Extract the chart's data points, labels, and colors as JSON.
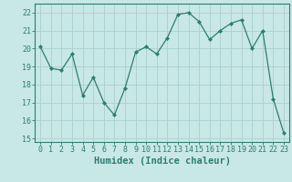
{
  "xlabel": "Humidex (Indice chaleur)",
  "ylabel": "",
  "x": [
    0,
    1,
    2,
    3,
    4,
    5,
    6,
    7,
    8,
    9,
    10,
    11,
    12,
    13,
    14,
    15,
    16,
    17,
    18,
    19,
    20,
    21,
    22,
    23
  ],
  "y": [
    20.1,
    18.9,
    18.8,
    19.7,
    17.4,
    18.4,
    17.0,
    16.3,
    17.8,
    19.8,
    20.1,
    19.7,
    20.6,
    21.9,
    22.0,
    21.5,
    20.5,
    21.0,
    21.4,
    21.6,
    20.0,
    21.0,
    17.2,
    15.3
  ],
  "line_color": "#2d7d6f",
  "marker": "D",
  "marker_size": 2.0,
  "bg_color": "#c8e8e5",
  "grid_color": "#aacfcc",
  "ylim": [
    14.8,
    22.5
  ],
  "xlim": [
    -0.5,
    23.5
  ],
  "yticks": [
    15,
    16,
    17,
    18,
    19,
    20,
    21,
    22
  ],
  "xticks": [
    0,
    1,
    2,
    3,
    4,
    5,
    6,
    7,
    8,
    9,
    10,
    11,
    12,
    13,
    14,
    15,
    16,
    17,
    18,
    19,
    20,
    21,
    22,
    23
  ],
  "tick_color": "#2d7d6f",
  "label_color": "#2d7d6f",
  "spine_color": "#2d7d6f",
  "xlabel_fontsize": 7.5,
  "tick_fontsize": 6.0
}
